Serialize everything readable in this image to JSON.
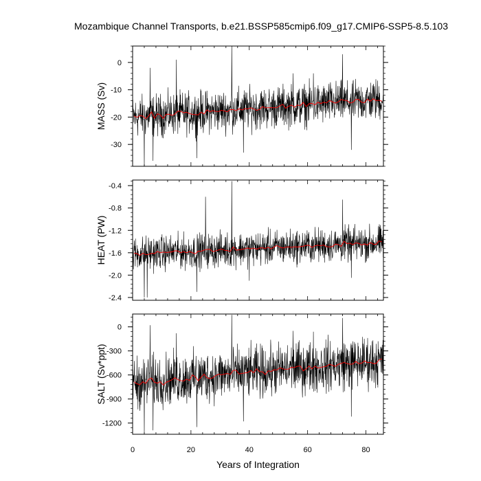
{
  "title": "Mozambique Channel Transports, b.e21.BSSP585cmip6.f09_g17.CMIP6-SSP5-8.5.103",
  "chart_data": [
    {
      "type": "line",
      "ylabel": "MASS (Sv)",
      "ylim": [
        -38,
        6
      ],
      "yticks": [
        0,
        -10,
        -20,
        -30
      ],
      "ytick_labels": [
        "0",
        "-10",
        "-20",
        "-30"
      ],
      "xlim": [
        0,
        86
      ],
      "xticks": [
        0,
        20,
        40,
        60,
        80
      ],
      "series": [
        {
          "color": "#000000",
          "kind": "monthly",
          "start": -20.0,
          "end": -13.5,
          "spread": 5.5,
          "peaks": [
            [
              4,
              -38
            ],
            [
              6,
              -2
            ],
            [
              7,
              -36
            ],
            [
              15,
              1
            ],
            [
              22,
              -35
            ],
            [
              34,
              6
            ],
            [
              38,
              -33
            ],
            [
              55,
              -4
            ],
            [
              62,
              -4
            ],
            [
              72,
              3
            ],
            [
              75,
              -32
            ]
          ]
        },
        {
          "color": "#ff0000",
          "kind": "annual mean",
          "start": -20.0,
          "end": -13.5
        }
      ]
    },
    {
      "type": "line",
      "ylabel": "HEAT (PW)",
      "ylim": [
        -2.45,
        -0.3
      ],
      "yticks": [
        -0.4,
        -0.8,
        -1.2,
        -1.6,
        -2.0,
        -2.4
      ],
      "ytick_labels": [
        "-0.4",
        "-0.8",
        "-1.2",
        "-1.6",
        "-2.0",
        "-2.4"
      ],
      "xlim": [
        0,
        86
      ],
      "xticks": [
        0,
        20,
        40,
        60,
        80
      ],
      "series": [
        {
          "color": "#000000",
          "kind": "monthly",
          "start": -1.62,
          "end": -1.42,
          "spread": 0.22,
          "peaks": [
            [
              4,
              -2.4
            ],
            [
              5,
              -2.4
            ],
            [
              22,
              -2.3
            ],
            [
              25,
              -0.6
            ],
            [
              34,
              -0.32
            ],
            [
              40,
              -2.1
            ],
            [
              72,
              -0.65
            ],
            [
              75,
              -2.05
            ]
          ]
        },
        {
          "color": "#ff0000",
          "kind": "annual mean",
          "start": -1.62,
          "end": -1.42
        }
      ]
    },
    {
      "type": "line",
      "ylabel": "SALT (Sv*ppt)",
      "ylim": [
        -1340,
        160
      ],
      "yticks": [
        0,
        -300,
        -600,
        -900,
        -1200
      ],
      "ytick_labels": [
        "0",
        "-300",
        "-600",
        "-900",
        "-1200"
      ],
      "xlim": [
        0,
        86
      ],
      "xticks": [
        0,
        20,
        40,
        60,
        80
      ],
      "xtick_labels": [
        "0",
        "20",
        "40",
        "60",
        "80"
      ],
      "xlabel": "Years of Integration",
      "series": [
        {
          "color": "#000000",
          "kind": "monthly",
          "start": -700,
          "end": -420,
          "spread": 230,
          "peaks": [
            [
              4,
              -1330
            ],
            [
              6,
              20
            ],
            [
              7,
              -1290
            ],
            [
              15,
              -80
            ],
            [
              22,
              -1250
            ],
            [
              34,
              150
            ],
            [
              38,
              -1180
            ],
            [
              55,
              -50
            ],
            [
              62,
              -60
            ],
            [
              72,
              110
            ],
            [
              75,
              -1120
            ]
          ]
        },
        {
          "color": "#ff0000",
          "kind": "annual mean",
          "start": -700,
          "end": -420
        }
      ]
    }
  ]
}
